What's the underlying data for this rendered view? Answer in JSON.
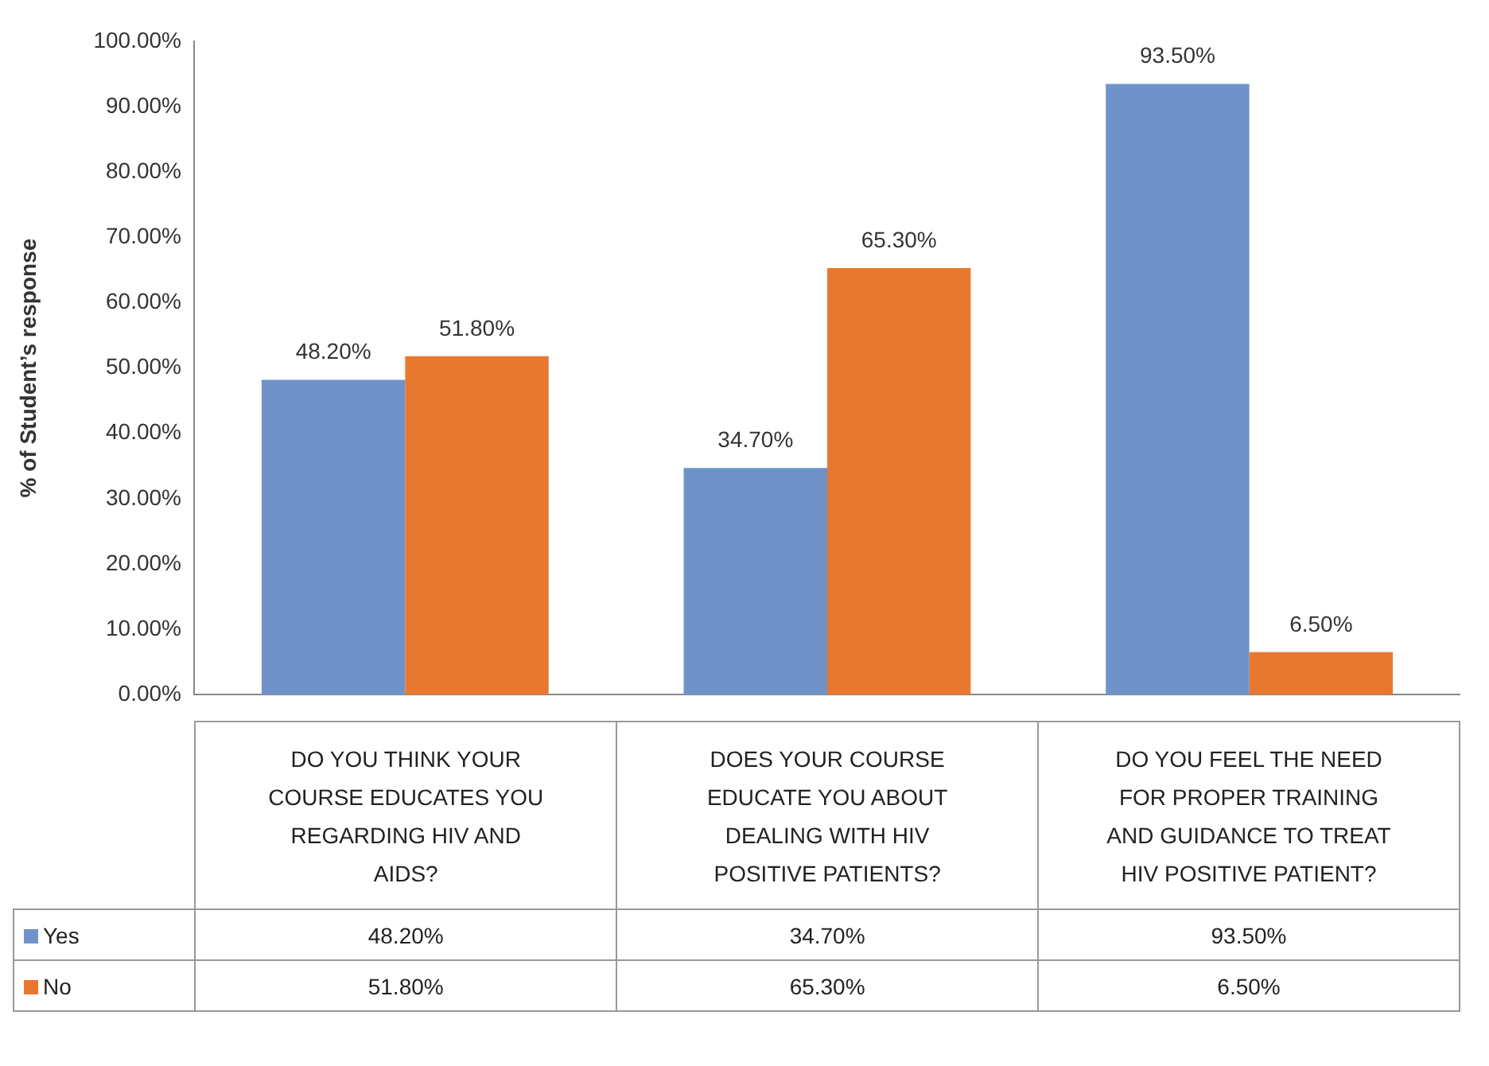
{
  "chart_data": {
    "type": "bar",
    "ylabel": "% of Student’s response",
    "categories": [
      "DO YOU THINK YOUR COURSE EDUCATES YOU REGARDING HIV AND AIDS?",
      "DOES YOUR COURSE EDUCATE YOU ABOUT DEALING WITH HIV POSITIVE PATIENTS?",
      "DO YOU FEEL THE NEED FOR PROPER TRAINING AND GUIDANCE TO TREAT HIV POSITIVE PATIENT?"
    ],
    "series": [
      {
        "name": "Yes",
        "color": "#6f93c8",
        "values": [
          48.2,
          34.7,
          93.5
        ],
        "value_labels": [
          "48.20%",
          "34.70%",
          "93.50%"
        ]
      },
      {
        "name": "No",
        "color": "#e8782f",
        "values": [
          51.8,
          65.3,
          6.5
        ],
        "value_labels": [
          "51.80%",
          "65.30%",
          "6.50%"
        ]
      }
    ],
    "ylim": [
      0,
      100
    ],
    "yticks": [
      {
        "value": 0,
        "label": "0.00%"
      },
      {
        "value": 10,
        "label": "10.00%"
      },
      {
        "value": 20,
        "label": "20.00%"
      },
      {
        "value": 30,
        "label": "30.00%"
      },
      {
        "value": 40,
        "label": "40.00%"
      },
      {
        "value": 50,
        "label": "50.00%"
      },
      {
        "value": 60,
        "label": "60.00%"
      },
      {
        "value": 70,
        "label": "70.00%"
      },
      {
        "value": 80,
        "label": "80.00%"
      },
      {
        "value": 90,
        "label": "90.00%"
      },
      {
        "value": 100,
        "label": "100.00%"
      }
    ],
    "legend": "bottom left",
    "grid": false
  }
}
